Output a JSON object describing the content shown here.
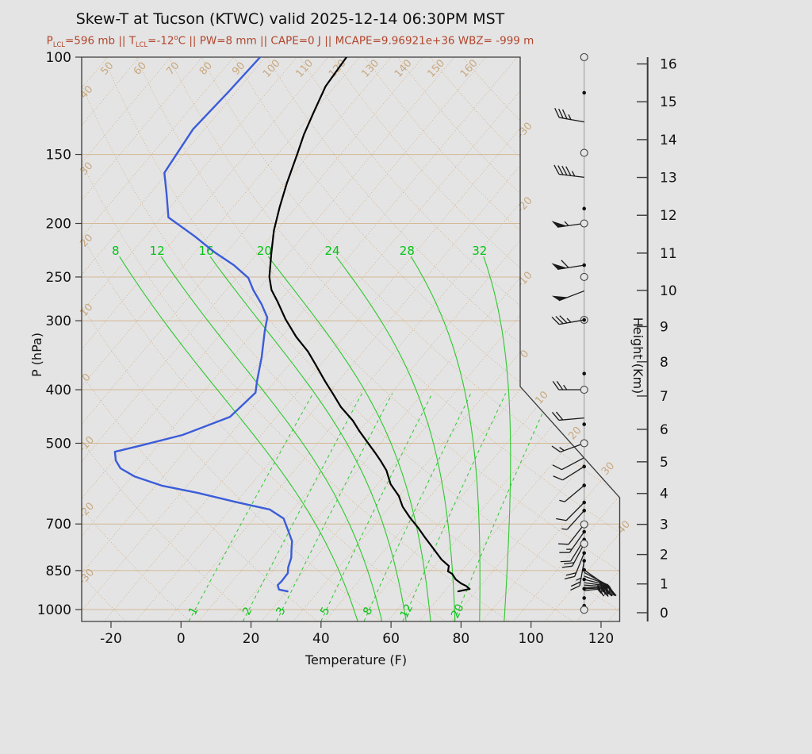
{
  "header": {
    "title": "Skew-T at Tucson (KTWC) valid 2025-12-14 06:30PM MST",
    "subtitle_segments": [
      {
        "t": "P"
      },
      {
        "sub": "LCL"
      },
      {
        "t": "=596 mb || T"
      },
      {
        "sub": "LCL"
      },
      {
        "t": "=-12"
      },
      {
        "sup": "o"
      },
      {
        "t": "C || PW=8 mm || CAPE=0 J || MCAPE=9.96921e+36 WBZ= -999 m"
      }
    ]
  },
  "colors": {
    "background": "#e4e4e4",
    "grid_tan": "#d4b896",
    "grid_tan_label": "#c9a87f",
    "green_line": "#2ec82e",
    "green_label": "#00c414",
    "temperature_line": "#000000",
    "dewpoint_line": "#3b5cd9",
    "subtitle_red": "#b2452c",
    "axis_dark": "#3a3a3a",
    "barb_dark": "#1a1a1a",
    "staff_gray": "#999999"
  },
  "chart_data": {
    "type": "line",
    "variant": "skewt-log-p",
    "title": "Skew-T at Tucson (KTWC) valid 2025-12-14 06:30PM MST",
    "axes": {
      "pressure": {
        "label": "P (hPa)",
        "units": "hPa",
        "ticks": [
          100,
          150,
          200,
          250,
          300,
          400,
          500,
          700,
          850,
          1000
        ],
        "range": [
          100,
          1050
        ],
        "scale": "log"
      },
      "temperature": {
        "label": "Temperature (F)",
        "units": "F",
        "ticks": [
          -20,
          0,
          20,
          40,
          60,
          80,
          100,
          120
        ]
      },
      "height": {
        "label": "Height (Km)",
        "units": "km",
        "ticks": [
          0,
          1,
          2,
          3,
          4,
          5,
          6,
          7,
          8,
          9,
          10,
          11,
          12,
          13,
          14,
          15,
          16
        ]
      }
    },
    "background_lines": {
      "isotherms_c": {
        "min": -110,
        "max": 50,
        "step": 5,
        "right_edge_labels": [
          -30,
          -20,
          -10,
          0,
          10,
          20,
          30,
          40
        ]
      },
      "dry_adiabats_c": {
        "min": -30,
        "max": 160,
        "step": 10,
        "left_edge_labels": [
          -30,
          -20,
          -10,
          0,
          10,
          20,
          30,
          40
        ],
        "top_edge_labels": [
          50,
          60,
          70,
          80,
          90,
          100,
          110,
          120,
          130,
          140,
          150,
          160
        ]
      },
      "moist_adiabats_c": [
        8,
        12,
        16,
        20,
        24,
        28,
        32
      ],
      "mixing_ratio_gkg": [
        1,
        2,
        3,
        5,
        8,
        12,
        20
      ]
    },
    "temperature_trace_p_c": [
      [
        100,
        -67.1
      ],
      [
        113,
        -66.5
      ],
      [
        126,
        -64.9
      ],
      [
        138,
        -63.5
      ],
      [
        150,
        -61.9
      ],
      [
        169,
        -59.7
      ],
      [
        187,
        -57.6
      ],
      [
        206,
        -55.4
      ],
      [
        227,
        -52.7
      ],
      [
        250,
        -49.9
      ],
      [
        264,
        -47.8
      ],
      [
        277,
        -45.3
      ],
      [
        298,
        -41.7
      ],
      [
        321,
        -37.6
      ],
      [
        341,
        -33.8
      ],
      [
        359,
        -31.0
      ],
      [
        386,
        -27.1
      ],
      [
        408,
        -24.0
      ],
      [
        430,
        -21.1
      ],
      [
        455,
        -17.4
      ],
      [
        475,
        -15.0
      ],
      [
        497,
        -12.3
      ],
      [
        519,
        -9.7
      ],
      [
        537,
        -7.7
      ],
      [
        560,
        -5.4
      ],
      [
        593,
        -2.9
      ],
      [
        623,
        0.0
      ],
      [
        651,
        2.0
      ],
      [
        681,
        4.6
      ],
      [
        711,
        7.3
      ],
      [
        743,
        9.9
      ],
      [
        778,
        12.7
      ],
      [
        812,
        15.3
      ],
      [
        834,
        17.3
      ],
      [
        853,
        17.9
      ],
      [
        862,
        18.9
      ],
      [
        882,
        20.2
      ],
      [
        897,
        21.6
      ],
      [
        906,
        22.7
      ],
      [
        918,
        23.7
      ],
      [
        927,
        22.2
      ]
    ],
    "dewpoint_trace_p_c": [
      [
        100,
        -80.8
      ],
      [
        116,
        -81.2
      ],
      [
        135,
        -81.8
      ],
      [
        158,
        -80.7
      ],
      [
        162,
        -80.5
      ],
      [
        177,
        -77.3
      ],
      [
        195,
        -73.9
      ],
      [
        211,
        -67.2
      ],
      [
        225,
        -62.1
      ],
      [
        238,
        -57.1
      ],
      [
        251,
        -53.1
      ],
      [
        264,
        -50.7
      ],
      [
        280,
        -47.5
      ],
      [
        296,
        -44.8
      ],
      [
        313,
        -43.4
      ],
      [
        349,
        -40.4
      ],
      [
        386,
        -37.9
      ],
      [
        405,
        -36.6
      ],
      [
        448,
        -37.4
      ],
      [
        483,
        -42.5
      ],
      [
        506,
        -48.0
      ],
      [
        518,
        -51.0
      ],
      [
        537,
        -49.7
      ],
      [
        555,
        -47.9
      ],
      [
        574,
        -44.6
      ],
      [
        597,
        -38.9
      ],
      [
        615,
        -32.3
      ],
      [
        640,
        -24.7
      ],
      [
        659,
        -18.7
      ],
      [
        684,
        -15.3
      ],
      [
        728,
        -12.4
      ],
      [
        752,
        -10.9
      ],
      [
        778,
        -9.9
      ],
      [
        806,
        -8.8
      ],
      [
        839,
        -8.0
      ],
      [
        859,
        -7.3
      ],
      [
        888,
        -7.2
      ],
      [
        903,
        -7.3
      ],
      [
        920,
        -6.5
      ],
      [
        927,
        -4.9
      ]
    ],
    "winds": [
      {
        "p": 100,
        "m": "circle"
      },
      {
        "p": 116,
        "m": "dot"
      },
      {
        "p": 131,
        "m": "none",
        "a": 190,
        "f": 3,
        "h": 1
      },
      {
        "p": 149,
        "m": "circle"
      },
      {
        "p": 165,
        "m": "none",
        "a": 187,
        "f": 4,
        "h": 1
      },
      {
        "p": 188,
        "m": "dot"
      },
      {
        "p": 200,
        "m": "circle",
        "a": 172,
        "pn": 1,
        "h": 1
      },
      {
        "p": 238,
        "m": "dot",
        "a": 171,
        "pn": 1,
        "f": 1
      },
      {
        "p": 250,
        "m": "circle"
      },
      {
        "p": 265,
        "m": "none",
        "a": 159,
        "pn": 1
      },
      {
        "p": 299,
        "m": "circledot",
        "a": 170,
        "f": 3,
        "h": 1
      },
      {
        "p": 374,
        "m": "dot"
      },
      {
        "p": 400,
        "m": "circle",
        "a": 180,
        "f": 2,
        "h": 1
      },
      {
        "p": 450,
        "m": "none",
        "a": 175,
        "f": 2
      },
      {
        "p": 462,
        "m": "dot"
      },
      {
        "p": 500,
        "m": "circle",
        "a": 160,
        "f": 1,
        "h": 1
      },
      {
        "p": 531,
        "m": "none",
        "a": 152,
        "f": 1
      },
      {
        "p": 551,
        "m": "dot",
        "a": 148,
        "f": 1
      },
      {
        "p": 596,
        "m": "dot",
        "a": 140,
        "h": 1
      },
      {
        "p": 640,
        "m": "dot",
        "a": 135,
        "f": 1
      },
      {
        "p": 662,
        "m": "dot",
        "a": 132,
        "h": 1
      },
      {
        "p": 701,
        "m": "circle",
        "a": 128,
        "f": 1
      },
      {
        "p": 723,
        "m": "dot",
        "a": 125,
        "f": 1,
        "h": 1
      },
      {
        "p": 747,
        "m": "dot",
        "a": 122,
        "f": 1
      },
      {
        "p": 760,
        "m": "circle",
        "a": 118,
        "f": 2
      },
      {
        "p": 790,
        "m": "dot",
        "a": 112,
        "f": 2
      },
      {
        "p": 816,
        "m": "dot",
        "a": 100,
        "f": 2,
        "h": 1
      },
      {
        "p": 848,
        "m": "dot",
        "a": 35,
        "f": 2
      },
      {
        "p": 857,
        "m": "none",
        "a": 28,
        "f": 2,
        "h": 1
      },
      {
        "p": 870,
        "m": "none",
        "a": 20,
        "f": 3
      },
      {
        "p": 882,
        "m": "dot",
        "a": 14,
        "f": 3
      },
      {
        "p": 894,
        "m": "none",
        "a": 8,
        "f": 3,
        "h": 1
      },
      {
        "p": 903,
        "m": "none",
        "a": 4,
        "f": 4
      },
      {
        "p": 912,
        "m": "none",
        "a": 0,
        "f": 4
      },
      {
        "p": 917,
        "m": "dot",
        "a": -3,
        "f": 4
      },
      {
        "p": 924,
        "m": "none",
        "a": -6,
        "f": 3,
        "h": 1
      },
      {
        "p": 953,
        "m": "dot"
      },
      {
        "p": 984,
        "m": "dot"
      },
      {
        "p": 1001,
        "m": "circle"
      }
    ]
  }
}
